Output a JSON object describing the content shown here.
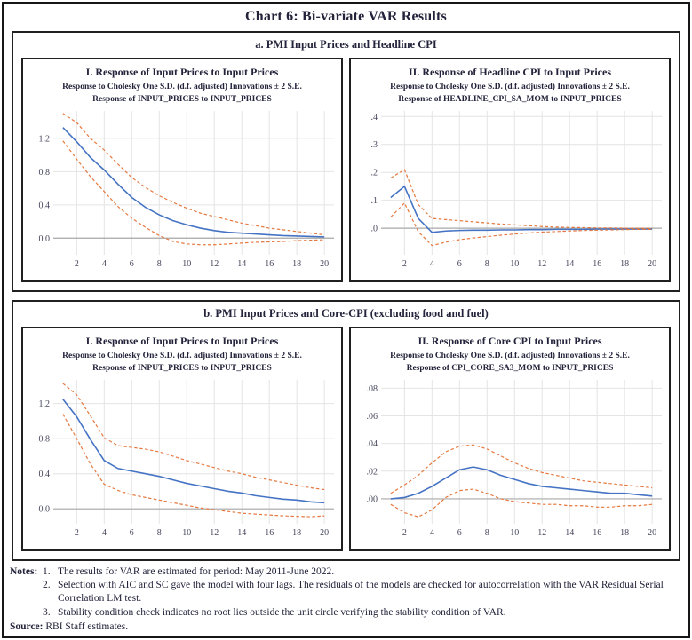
{
  "title": "Chart 6: Bi-variate VAR Results",
  "colors": {
    "response_line": "#4573c4",
    "band_line": "#e5793f",
    "grid": "#e4e4e4",
    "zero_line": "#a9a9a9",
    "text": "#23233b",
    "tick_text": "#45455c",
    "border": "#202020"
  },
  "panels": [
    {
      "title": "a. PMI Input Prices and Headline CPI"
    },
    {
      "title": "b. PMI Input Prices and Core-CPI (excluding food and fuel)"
    }
  ],
  "chart_data": [
    {
      "type": "line",
      "panel": "a",
      "title": "I. Response of Input Prices to Input Prices",
      "subtitle": "Response to Cholesky One S.D. (d.f. adjusted) Innovations ± 2 S.E.",
      "inner_title": "Response of INPUT_PRICES to INPUT_PRICES",
      "x": [
        1,
        2,
        3,
        4,
        5,
        6,
        7,
        8,
        9,
        10,
        11,
        12,
        13,
        14,
        15,
        16,
        17,
        18,
        19,
        20
      ],
      "xticks": [
        2,
        4,
        6,
        8,
        10,
        12,
        14,
        16,
        18,
        20
      ],
      "xlim": [
        0.3,
        20.7
      ],
      "ylim": [
        -0.2,
        1.53
      ],
      "yticks": [
        [
          1.2,
          "1.2"
        ],
        [
          0.8,
          "0.8"
        ],
        [
          0.4,
          "0.4"
        ],
        [
          0.0,
          "0.0"
        ]
      ],
      "grid": true,
      "legend": false,
      "series": [
        {
          "name": "response",
          "style": "solid",
          "color": "#4573c4",
          "values": [
            1.33,
            1.16,
            0.97,
            0.82,
            0.65,
            0.49,
            0.37,
            0.28,
            0.21,
            0.16,
            0.12,
            0.09,
            0.07,
            0.06,
            0.05,
            0.04,
            0.03,
            0.025,
            0.02,
            0.015
          ]
        },
        {
          "name": "upper_band_plus_2se",
          "style": "dashed",
          "color": "#e5793f",
          "values": [
            1.5,
            1.39,
            1.2,
            1.06,
            0.89,
            0.73,
            0.61,
            0.51,
            0.43,
            0.36,
            0.3,
            0.26,
            0.22,
            0.18,
            0.15,
            0.12,
            0.1,
            0.08,
            0.06,
            0.04
          ]
        },
        {
          "name": "lower_band_minus_2se",
          "style": "dashed",
          "color": "#e5793f",
          "values": [
            1.17,
            0.95,
            0.74,
            0.56,
            0.38,
            0.24,
            0.13,
            0.03,
            -0.04,
            -0.07,
            -0.08,
            -0.08,
            -0.07,
            -0.06,
            -0.05,
            -0.045,
            -0.04,
            -0.03,
            -0.025,
            -0.02
          ]
        }
      ]
    },
    {
      "type": "line",
      "panel": "a",
      "title": "II. Response of Headline CPI to Input Prices",
      "subtitle": "Response to Cholesky One S.D. (d.f. adjusted) Innovations ± 2 S.E.",
      "inner_title": "Response of HEADLINE_CPI_SA_MOM to INPUT_PRICES",
      "x": [
        1,
        2,
        3,
        4,
        5,
        6,
        7,
        8,
        9,
        10,
        11,
        12,
        13,
        14,
        15,
        16,
        17,
        18,
        19,
        20
      ],
      "xticks": [
        2,
        4,
        6,
        8,
        10,
        12,
        14,
        16,
        18,
        20
      ],
      "xlim": [
        0.3,
        20.7
      ],
      "ylim": [
        -0.095,
        0.42
      ],
      "yticks": [
        [
          0.4,
          ".4"
        ],
        [
          0.3,
          ".3"
        ],
        [
          0.2,
          ".2"
        ],
        [
          0.1,
          ".1"
        ],
        [
          0.0,
          ".0"
        ]
      ],
      "grid": true,
      "legend": false,
      "series": [
        {
          "name": "response",
          "style": "solid",
          "color": "#4573c4",
          "values": [
            0.11,
            0.15,
            0.035,
            -0.015,
            -0.01,
            -0.008,
            -0.007,
            -0.007,
            -0.006,
            -0.006,
            -0.005,
            -0.005,
            -0.004,
            -0.004,
            -0.004,
            -0.003,
            -0.003,
            -0.003,
            -0.003,
            -0.003
          ]
        },
        {
          "name": "upper_band_plus_2se",
          "style": "dashed",
          "color": "#e5793f",
          "values": [
            0.18,
            0.21,
            0.085,
            0.035,
            0.031,
            0.027,
            0.023,
            0.019,
            0.015,
            0.012,
            0.009,
            0.006,
            0.004,
            0.003,
            0.002,
            0.001,
            0.001,
            0.0,
            0.0,
            0.0
          ]
        },
        {
          "name": "lower_band_minus_2se",
          "style": "dashed",
          "color": "#e5793f",
          "values": [
            0.04,
            0.09,
            -0.012,
            -0.062,
            -0.05,
            -0.041,
            -0.035,
            -0.03,
            -0.025,
            -0.021,
            -0.017,
            -0.014,
            -0.012,
            -0.01,
            -0.008,
            -0.007,
            -0.006,
            -0.005,
            -0.004,
            -0.004
          ]
        }
      ]
    },
    {
      "type": "line",
      "panel": "b",
      "title": "I. Response of Input Prices to Input Prices",
      "subtitle": "Response to Cholesky One S.D. (d.f. adjusted) Innovations ± 2 S.E.",
      "inner_title": "Response of INPUT_PRICES to INPUT_PRICES",
      "x": [
        1,
        2,
        3,
        4,
        5,
        6,
        7,
        8,
        9,
        10,
        11,
        12,
        13,
        14,
        15,
        16,
        17,
        18,
        19,
        20
      ],
      "xticks": [
        2,
        4,
        6,
        8,
        10,
        12,
        14,
        16,
        18,
        20
      ],
      "xlim": [
        0.3,
        20.7
      ],
      "ylim": [
        -0.17,
        1.47
      ],
      "yticks": [
        [
          1.2,
          "1.2"
        ],
        [
          0.8,
          "0.8"
        ],
        [
          0.4,
          "0.4"
        ],
        [
          0.0,
          "0.0"
        ]
      ],
      "grid": true,
      "legend": false,
      "series": [
        {
          "name": "response",
          "style": "solid",
          "color": "#4573c4",
          "values": [
            1.25,
            1.05,
            0.79,
            0.55,
            0.46,
            0.43,
            0.4,
            0.37,
            0.33,
            0.29,
            0.26,
            0.23,
            0.2,
            0.18,
            0.15,
            0.13,
            0.11,
            0.1,
            0.08,
            0.07
          ]
        },
        {
          "name": "upper_band_plus_2se",
          "style": "dashed",
          "color": "#e5793f",
          "values": [
            1.43,
            1.3,
            1.06,
            0.81,
            0.72,
            0.7,
            0.68,
            0.65,
            0.6,
            0.55,
            0.51,
            0.47,
            0.43,
            0.4,
            0.36,
            0.33,
            0.3,
            0.27,
            0.24,
            0.22
          ]
        },
        {
          "name": "lower_band_minus_2se",
          "style": "dashed",
          "color": "#e5793f",
          "values": [
            1.08,
            0.8,
            0.51,
            0.28,
            0.21,
            0.16,
            0.13,
            0.1,
            0.07,
            0.04,
            0.01,
            -0.01,
            -0.03,
            -0.05,
            -0.06,
            -0.07,
            -0.08,
            -0.085,
            -0.09,
            -0.08
          ]
        }
      ]
    },
    {
      "type": "line",
      "panel": "b",
      "title": "II. Response of Core CPI to Input Prices",
      "subtitle": "Response to Cholesky One S.D. (d.f. adjusted) Innovations ± 2 S.E.",
      "inner_title": "Response of CPI_CORE_SA3_MOM to INPUT_PRICES",
      "x": [
        1,
        2,
        3,
        4,
        5,
        6,
        7,
        8,
        9,
        10,
        11,
        12,
        13,
        14,
        15,
        16,
        17,
        18,
        19,
        20
      ],
      "xticks": [
        2,
        4,
        6,
        8,
        10,
        12,
        14,
        16,
        18,
        20
      ],
      "xlim": [
        0.3,
        20.7
      ],
      "ylim": [
        -0.018,
        0.086
      ],
      "yticks": [
        [
          0.08,
          ".08"
        ],
        [
          0.06,
          ".06"
        ],
        [
          0.04,
          ".04"
        ],
        [
          0.02,
          ".02"
        ],
        [
          0.0,
          ".00"
        ]
      ],
      "grid": true,
      "legend": false,
      "series": [
        {
          "name": "response",
          "style": "solid",
          "color": "#4573c4",
          "values": [
            0.0,
            0.001,
            0.004,
            0.009,
            0.015,
            0.021,
            0.023,
            0.021,
            0.017,
            0.014,
            0.011,
            0.009,
            0.008,
            0.007,
            0.006,
            0.005,
            0.004,
            0.004,
            0.003,
            0.002
          ]
        },
        {
          "name": "upper_band_plus_2se",
          "style": "dashed",
          "color": "#e5793f",
          "values": [
            0.004,
            0.01,
            0.017,
            0.026,
            0.034,
            0.038,
            0.039,
            0.036,
            0.031,
            0.026,
            0.022,
            0.019,
            0.017,
            0.015,
            0.013,
            0.012,
            0.011,
            0.01,
            0.009,
            0.008
          ]
        },
        {
          "name": "lower_band_minus_2se",
          "style": "dashed",
          "color": "#e5793f",
          "values": [
            -0.004,
            -0.01,
            -0.013,
            -0.008,
            0.001,
            0.006,
            0.007,
            0.004,
            0.0,
            -0.002,
            -0.003,
            -0.004,
            -0.004,
            -0.005,
            -0.005,
            -0.006,
            -0.006,
            -0.005,
            -0.005,
            -0.004
          ]
        }
      ]
    }
  ],
  "notes": {
    "label": "Notes:",
    "items": [
      {
        "num": "1.",
        "text": "The results for VAR are estimated for period: May 2011-June 2022."
      },
      {
        "num": "2.",
        "text": "Selection with AIC and SC gave the model with four lags. The residuals of the models are checked for autocorrelation with the VAR Residual Serial Correlation LM test."
      },
      {
        "num": "3.",
        "text": "Stability condition check indicates no root lies outside the unit circle verifying the stability condition of VAR."
      }
    ],
    "source_label": "Source:",
    "source_text": "RBI Staff estimates."
  }
}
